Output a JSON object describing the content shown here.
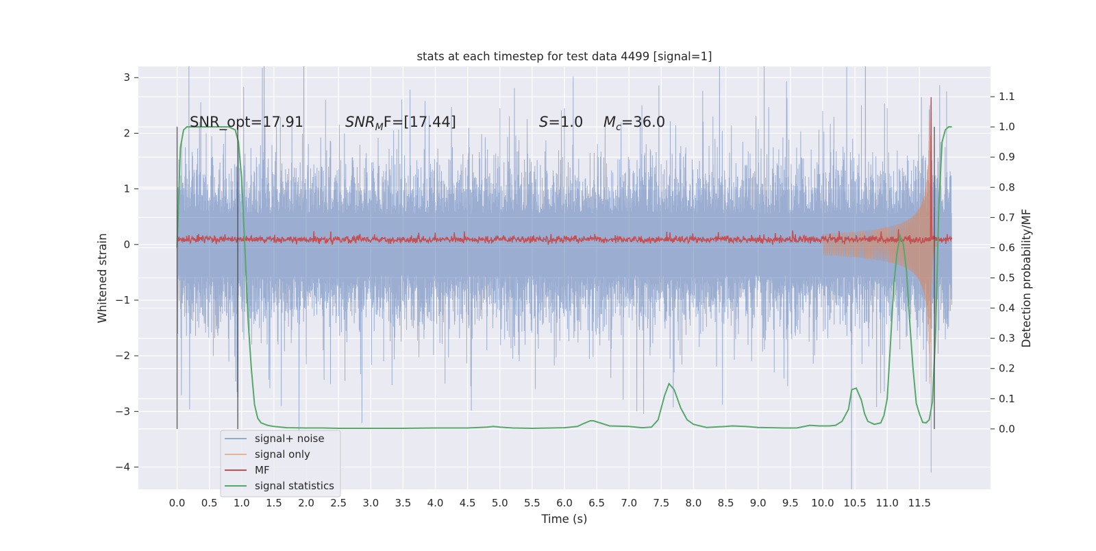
{
  "chart_data": {
    "type": "line",
    "title": "stats at each timestep for test data 4499 [signal=1]",
    "xlabel": "Time (s)",
    "ylabel": "Whitened strain",
    "y2label": "Detection probability/MF",
    "xlim": [
      -0.6,
      12.6
    ],
    "ylim": [
      -4.4,
      3.2
    ],
    "y2lim": [
      -0.2,
      1.2
    ],
    "x_ticks": [
      0.0,
      0.5,
      1.0,
      1.5,
      2.0,
      2.5,
      3.0,
      3.5,
      4.0,
      4.5,
      5.0,
      5.5,
      6.0,
      6.5,
      7.0,
      7.5,
      8.0,
      8.5,
      9.0,
      9.5,
      10.0,
      10.5,
      11.0,
      11.5
    ],
    "x_tick_labels": [
      "0.0",
      "0.5",
      "1.0",
      "1.5",
      "2.0",
      "2.5",
      "3.0",
      "3.5",
      "4.0",
      "4.5",
      "5.0",
      "5.5",
      "6.0",
      "6.5",
      "7.0",
      "7.5",
      "8.0",
      "8.5",
      "9.0",
      "9.5",
      "10.0",
      "10.5",
      "11.0",
      "11.5"
    ],
    "y_ticks": [
      -4,
      -3,
      -2,
      -1,
      0,
      1,
      2,
      3
    ],
    "y_tick_labels": [
      "−4",
      "−3",
      "−2",
      "−1",
      "0",
      "1",
      "2",
      "3"
    ],
    "y2_ticks": [
      0.0,
      0.1,
      0.2,
      0.3,
      0.4,
      0.5,
      0.6,
      0.7,
      0.8,
      0.9,
      1.0,
      1.1
    ],
    "y2_tick_labels": [
      "0.0",
      "0.1",
      "0.2",
      "0.3",
      "0.4",
      "0.5",
      "0.6",
      "0.7",
      "0.8",
      "0.9",
      "1.0",
      "1.1"
    ],
    "grid": true,
    "legend_position": "lower-left",
    "annotations": {
      "snr_opt": "SNR_opt=17.91",
      "snr_mf_main": "SNR",
      "snr_mf_sub": "M",
      "snr_mf_rest": "F=[17.44]",
      "s_sym": "S",
      "s_rest": "=1.0",
      "mc_sym": "M",
      "mc_sub": "c",
      "mc_rest": "=36.0"
    },
    "vertical_markers": [
      0.0,
      0.94,
      11.73
    ],
    "vertical_marker_y2_range": [
      0.0,
      1.0
    ],
    "series": [
      {
        "name": "signal+ noise",
        "color": "#4c72b0",
        "axis": "left",
        "x_range": [
          0.0,
          12.0
        ],
        "noise_sigma": 0.6,
        "envelope_max": 1.05,
        "envelope_min": -1.1,
        "spikes": [
          [
            0.45,
            2.0
          ],
          [
            1.6,
            2.3
          ],
          [
            2.0,
            -2.0
          ],
          [
            2.3,
            2.6
          ],
          [
            2.6,
            -2.45
          ],
          [
            3.2,
            -2.1
          ],
          [
            4.15,
            -2.5
          ],
          [
            4.55,
            -2.55
          ],
          [
            5.0,
            2.45
          ],
          [
            5.55,
            -2.6
          ],
          [
            6.0,
            2.45
          ],
          [
            7.2,
            2.5
          ],
          [
            7.7,
            -2.3
          ],
          [
            8.3,
            2.3
          ],
          [
            9.25,
            -2.3
          ],
          [
            10.0,
            2.4
          ],
          [
            10.6,
            2.5
          ],
          [
            11.0,
            2.45
          ],
          [
            11.53,
            2.65
          ],
          [
            11.68,
            -4.1
          ],
          [
            11.92,
            2.75
          ]
        ]
      },
      {
        "name": "signal only",
        "color": "#dd8452",
        "axis": "left",
        "chirp": {
          "start": 10.0,
          "merger": 11.66,
          "end": 11.78,
          "peak": 2.85,
          "f0": 35,
          "f1": 160,
          "min_amp": 0.04
        }
      },
      {
        "name": "MF",
        "color": "#c44e52",
        "axis": "left",
        "x_range": [
          0.0,
          12.0
        ],
        "mean": 0.09,
        "spread": 0.05,
        "bumps": [
          [
            11.68,
            2.65
          ]
        ]
      },
      {
        "name": "signal statistics",
        "color": "#55a868",
        "axis": "right",
        "x": [
          0.0,
          0.05,
          0.1,
          0.15,
          0.2,
          0.3,
          0.4,
          0.5,
          0.6,
          0.7,
          0.8,
          0.9,
          0.95,
          1.0,
          1.05,
          1.1,
          1.15,
          1.2,
          1.25,
          1.3,
          1.4,
          1.5,
          1.7,
          2.0,
          2.25,
          2.5,
          3.0,
          3.5,
          4.0,
          4.5,
          4.8,
          4.9,
          5.0,
          5.2,
          5.5,
          5.8,
          6.0,
          6.2,
          6.3,
          6.4,
          6.45,
          6.55,
          6.7,
          7.0,
          7.2,
          7.35,
          7.45,
          7.55,
          7.62,
          7.7,
          7.8,
          7.9,
          8.0,
          8.2,
          8.5,
          8.6,
          8.8,
          9.0,
          9.2,
          9.4,
          9.6,
          9.8,
          9.95,
          10.1,
          10.2,
          10.3,
          10.4,
          10.45,
          10.52,
          10.6,
          10.65,
          10.7,
          10.8,
          10.9,
          10.95,
          11.0,
          11.05,
          11.1,
          11.15,
          11.2,
          11.25,
          11.3,
          11.35,
          11.4,
          11.45,
          11.5,
          11.55,
          11.6,
          11.65,
          11.7,
          11.75,
          11.8,
          11.85,
          11.9,
          11.95,
          12.0
        ],
        "y": [
          0.6,
          0.93,
          0.99,
          1.0,
          1.0,
          1.0,
          1.0,
          1.0,
          1.0,
          1.0,
          1.0,
          0.99,
          0.95,
          0.83,
          0.6,
          0.36,
          0.2,
          0.08,
          0.035,
          0.02,
          0.012,
          0.008,
          0.004,
          0.003,
          0.003,
          0.002,
          0.002,
          0.002,
          0.003,
          0.003,
          0.006,
          0.008,
          0.006,
          0.003,
          0.002,
          0.003,
          0.004,
          0.008,
          0.018,
          0.027,
          0.027,
          0.02,
          0.01,
          0.008,
          0.004,
          0.006,
          0.03,
          0.11,
          0.15,
          0.13,
          0.07,
          0.03,
          0.015,
          0.005,
          0.008,
          0.01,
          0.008,
          0.005,
          0.004,
          0.003,
          0.003,
          0.012,
          0.01,
          0.01,
          0.012,
          0.025,
          0.065,
          0.13,
          0.135,
          0.095,
          0.05,
          0.025,
          0.015,
          0.02,
          0.045,
          0.1,
          0.28,
          0.47,
          0.58,
          0.64,
          0.61,
          0.52,
          0.35,
          0.2,
          0.085,
          0.05,
          0.022,
          0.02,
          0.03,
          0.09,
          0.32,
          0.74,
          0.95,
          0.99,
          1.0,
          1.0
        ]
      }
    ]
  }
}
